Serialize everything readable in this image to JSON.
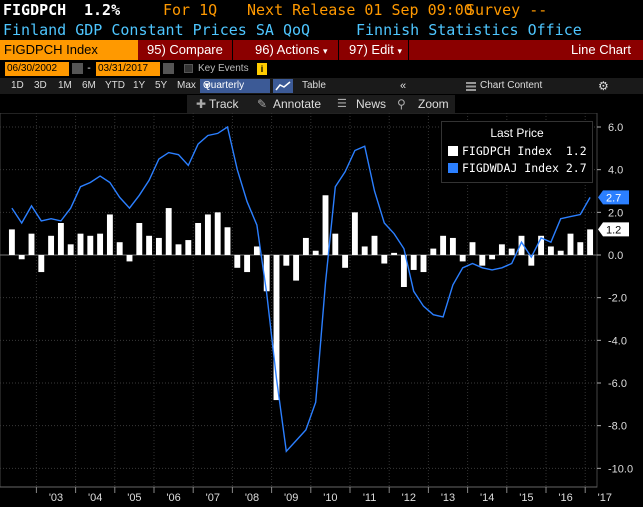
{
  "header": {
    "ticker": "FIGDPCH",
    "value": "1.2%",
    "period": "For 1Q",
    "next_release": "Next Release 01 Sep 09:00",
    "survey": "Survey --",
    "description": "Finland GDP Constant Prices SA QoQ",
    "source": "Finnish Statistics Office"
  },
  "toolbar": {
    "security": "FIGDPCH Index",
    "compare": "95) Compare",
    "actions": "96) Actions",
    "edit": "97) Edit",
    "chart_type": "Line Chart"
  },
  "dates": {
    "start": "06/30/2002",
    "end": "03/31/2017",
    "key_events": "Key Events"
  },
  "periods": {
    "buttons": [
      "1D",
      "3D",
      "1M",
      "6M",
      "YTD",
      "1Y",
      "5Y",
      "Max"
    ],
    "frequency": "Quarterly",
    "table": "Table",
    "chart_content": "Chart Content"
  },
  "tools": {
    "track": "Track",
    "annotate": "Annotate",
    "news": "News",
    "zoom": "Zoom"
  },
  "legend": {
    "title": "Last Price",
    "entries": [
      {
        "name": "FIGDPCH Index",
        "value": "1.2",
        "color": "#ffffff"
      },
      {
        "name": "FIGDWDAJ Index",
        "value": "2.7",
        "color": "#2b7fff"
      }
    ]
  },
  "colors": {
    "accent": "#ff9900",
    "bar": "#8b0000",
    "line": "#2b7fff"
  },
  "chart_data": {
    "type": "bar",
    "x": [
      "2002-Q2",
      "2002-Q3",
      "2002-Q4",
      "2003-Q1",
      "2003-Q2",
      "2003-Q3",
      "2003-Q4",
      "2004-Q1",
      "2004-Q2",
      "2004-Q3",
      "2004-Q4",
      "2005-Q1",
      "2005-Q2",
      "2005-Q3",
      "2005-Q4",
      "2006-Q1",
      "2006-Q2",
      "2006-Q3",
      "2006-Q4",
      "2007-Q1",
      "2007-Q2",
      "2007-Q3",
      "2007-Q4",
      "2008-Q1",
      "2008-Q2",
      "2008-Q3",
      "2008-Q4",
      "2009-Q1",
      "2009-Q2",
      "2009-Q3",
      "2009-Q4",
      "2010-Q1",
      "2010-Q2",
      "2010-Q3",
      "2010-Q4",
      "2011-Q1",
      "2011-Q2",
      "2011-Q3",
      "2011-Q4",
      "2012-Q1",
      "2012-Q2",
      "2012-Q3",
      "2012-Q4",
      "2013-Q1",
      "2013-Q2",
      "2013-Q3",
      "2013-Q4",
      "2014-Q1",
      "2014-Q2",
      "2014-Q3",
      "2014-Q4",
      "2015-Q1",
      "2015-Q2",
      "2015-Q3",
      "2015-Q4",
      "2016-Q1",
      "2016-Q2",
      "2016-Q3",
      "2016-Q4",
      "2017-Q1"
    ],
    "series": [
      {
        "name": "FIGDPCH Index",
        "kind": "bar",
        "values": [
          1.2,
          -0.2,
          1.0,
          -0.8,
          0.9,
          1.5,
          0.5,
          1.0,
          0.9,
          1.0,
          1.9,
          0.6,
          -0.3,
          1.5,
          0.9,
          0.8,
          2.2,
          0.5,
          0.7,
          1.5,
          1.9,
          2.0,
          1.3,
          -0.6,
          -0.8,
          0.4,
          -1.7,
          -6.8,
          -0.5,
          -1.2,
          0.8,
          0.2,
          2.8,
          1.0,
          -0.6,
          2.0,
          0.4,
          0.9,
          -0.4,
          0.1,
          -1.5,
          -0.7,
          -0.8,
          0.3,
          0.9,
          0.8,
          -0.3,
          0.6,
          -0.5,
          -0.2,
          0.5,
          0.3,
          0.9,
          -0.5,
          0.9,
          0.4,
          0.2,
          1.0,
          0.6,
          1.2
        ]
      },
      {
        "name": "FIGDWDAJ Index",
        "kind": "line",
        "values": [
          2.2,
          1.5,
          2.3,
          1.6,
          1.7,
          1.6,
          2.2,
          3.2,
          3.4,
          3.7,
          3.4,
          2.7,
          2.2,
          2.8,
          3.5,
          4.5,
          4.8,
          4.7,
          4.2,
          5.2,
          5.6,
          5.7,
          6.0,
          4.0,
          2.5,
          1.4,
          -1.8,
          -5.8,
          -9.2,
          -8.7,
          -8.2,
          -6.9,
          -1.3,
          3.2,
          3.9,
          4.9,
          5.1,
          3.0,
          1.5,
          1.0,
          0.3,
          -1.7,
          -2.4,
          -2.8,
          -2.9,
          -1.4,
          -0.6,
          -0.4,
          -0.6,
          -0.7,
          -0.6,
          -0.4,
          0.6,
          -0.1,
          0.8,
          0.6,
          1.7,
          1.8,
          1.9,
          2.7
        ]
      }
    ],
    "yticks": [
      "6.0",
      "4.0",
      "2.0",
      "0.0",
      "-2.0",
      "-4.0",
      "-6.0",
      "-8.0",
      "-10.0"
    ],
    "xticks": [
      "'03",
      "'04",
      "'05",
      "'06",
      "'07",
      "'08",
      "'09",
      "'10",
      "'11",
      "'12",
      "'13",
      "'14",
      "'15",
      "'16",
      "'17"
    ],
    "last_labels": [
      "2.7",
      "1.2"
    ],
    "ylim": [
      -10.6,
      6.8
    ],
    "grid": true
  }
}
